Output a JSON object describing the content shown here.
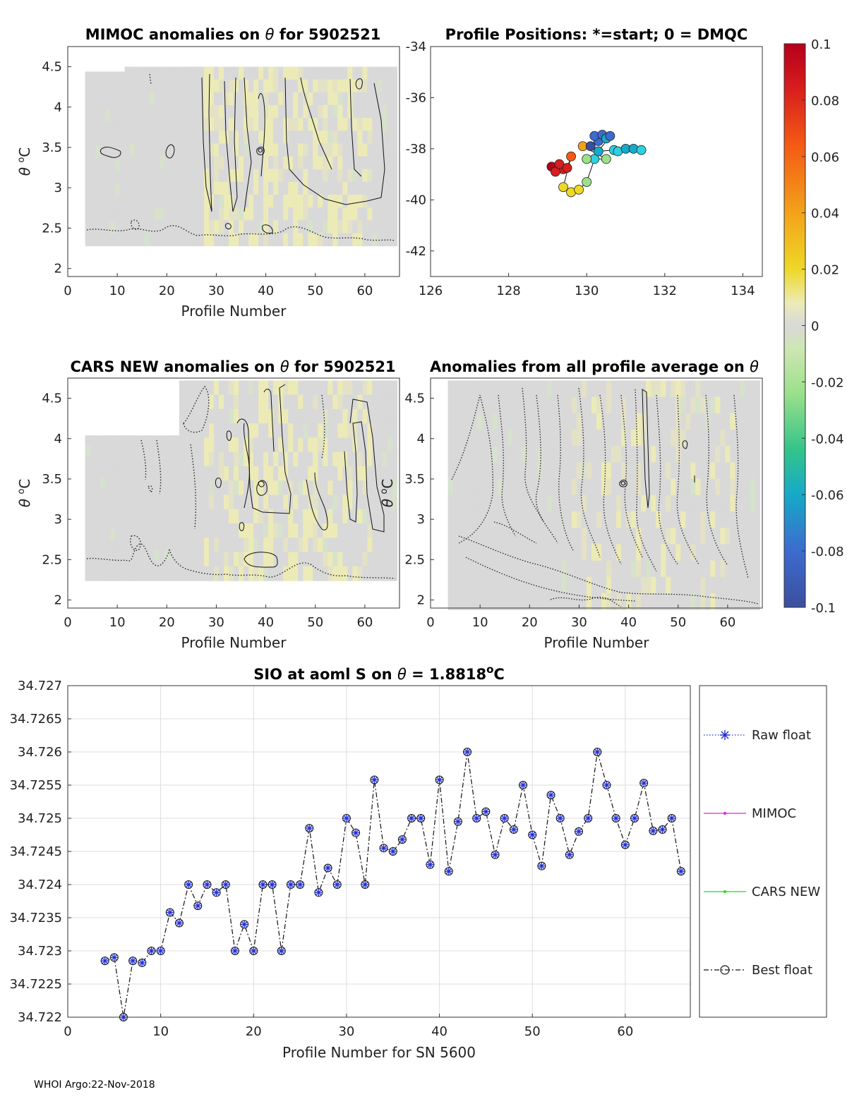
{
  "footer": "WHOI Argo:22-Nov-2018",
  "colors": {
    "raw": "#1f2bd6",
    "mimoc": "#e020e0",
    "cars": "#22dd22",
    "best": "#000000",
    "grid": "#dddddd",
    "field_gray": "#d9d9d9",
    "field_yellow": "#ecebb7"
  },
  "chart_data": [
    {
      "id": "mimoc",
      "type": "heatmap",
      "title_parts": [
        "MIMOC anomalies on ",
        "θ",
        "  for 5902521"
      ],
      "xlabel": "Profile Number",
      "ylabel_parts": [
        "θ",
        " ",
        "o",
        "C"
      ],
      "xlim": [
        0,
        67
      ],
      "ylim": [
        1.9,
        4.75
      ],
      "xticks": [
        0,
        10,
        20,
        30,
        40,
        50,
        60
      ],
      "yticks": [
        2,
        2.5,
        3,
        3.5,
        4,
        4.5
      ],
      "ytick_labels": [
        "2",
        "2.5",
        "3",
        "3.5",
        "4",
        "4.5"
      ],
      "field_x_range": [
        4,
        66
      ],
      "field_y_range": [
        2.28,
        4.5
      ]
    },
    {
      "id": "positions",
      "type": "scatter",
      "title": "Profile Positions: *=start; 0 = DMQC",
      "xlim": [
        126,
        134.5
      ],
      "ylim": [
        -43,
        -34
      ],
      "xticks": [
        126,
        128,
        130,
        132,
        134
      ],
      "yticks": [
        -34,
        -36,
        -38,
        -40,
        -42
      ],
      "points": [
        {
          "lon": 129.1,
          "lat": -38.7,
          "v": 0.1
        },
        {
          "lon": 129.3,
          "lat": -38.75,
          "v": 0.095
        },
        {
          "lon": 129.4,
          "lat": -38.8,
          "v": 0.09
        },
        {
          "lon": 129.2,
          "lat": -38.9,
          "v": 0.085
        },
        {
          "lon": 129.3,
          "lat": -38.6,
          "v": 0.08
        },
        {
          "lon": 129.5,
          "lat": -38.75,
          "v": 0.075
        },
        {
          "lon": 129.6,
          "lat": -38.3,
          "v": 0.06
        },
        {
          "lon": 129.4,
          "lat": -39.5,
          "v": 0.028
        },
        {
          "lon": 129.6,
          "lat": -39.7,
          "v": 0.026
        },
        {
          "lon": 129.8,
          "lat": -39.6,
          "v": 0.02
        },
        {
          "lon": 130.0,
          "lat": -39.3,
          "v": -0.03
        },
        {
          "lon": 130.2,
          "lat": -38.4,
          "v": -0.04
        },
        {
          "lon": 130.0,
          "lat": -38.4,
          "v": -0.03
        },
        {
          "lon": 130.5,
          "lat": -38.4,
          "v": -0.035
        },
        {
          "lon": 129.9,
          "lat": -37.9,
          "v": 0.045
        },
        {
          "lon": 130.1,
          "lat": -37.9,
          "v": -0.1
        },
        {
          "lon": 130.3,
          "lat": -37.7,
          "v": -0.07
        },
        {
          "lon": 130.2,
          "lat": -37.5,
          "v": -0.08
        },
        {
          "lon": 130.4,
          "lat": -37.45,
          "v": -0.075
        },
        {
          "lon": 130.5,
          "lat": -37.6,
          "v": -0.065
        },
        {
          "lon": 130.6,
          "lat": -37.5,
          "v": -0.07
        },
        {
          "lon": 130.3,
          "lat": -38.1,
          "v": -0.06
        },
        {
          "lon": 130.7,
          "lat": -38.05,
          "v": -0.05
        },
        {
          "lon": 130.8,
          "lat": -38.1,
          "v": -0.045
        },
        {
          "lon": 131.0,
          "lat": -38.0,
          "v": -0.06
        },
        {
          "lon": 131.2,
          "lat": -38.0,
          "v": -0.055
        },
        {
          "lon": 131.4,
          "lat": -38.05,
          "v": -0.05
        }
      ]
    },
    {
      "id": "colorbar",
      "type": "colorbar",
      "range": [
        -0.1,
        0.1
      ],
      "tick_labels": [
        "0.1",
        "0.08",
        "0.06",
        "0.04",
        "0.02",
        "0",
        "-0.02",
        "-0.04",
        "-0.06",
        "-0.08",
        "-0.1"
      ],
      "tick_values": [
        0.1,
        0.08,
        0.06,
        0.04,
        0.02,
        0,
        -0.02,
        -0.04,
        -0.06,
        -0.08,
        -0.1
      ]
    },
    {
      "id": "cars",
      "type": "heatmap",
      "title_parts": [
        "CARS NEW anomalies on ",
        "θ",
        " for 5902521"
      ],
      "xlabel": "Profile Number",
      "ylabel_parts": [
        "θ",
        " ",
        "o",
        "C"
      ],
      "xlim": [
        0,
        67
      ],
      "ylim": [
        1.9,
        4.75
      ],
      "xticks": [
        0,
        10,
        20,
        30,
        40,
        50,
        60
      ],
      "yticks": [
        2,
        2.5,
        3,
        3.5,
        4,
        4.5
      ],
      "ytick_labels": [
        "2",
        "2.5",
        "3",
        "3.5",
        "4",
        "4.5"
      ],
      "field_x_range": [
        4,
        66
      ],
      "field_y_range": [
        2.24,
        4.72
      ]
    },
    {
      "id": "allprof",
      "type": "heatmap",
      "title_parts": [
        "Anomalies from all profile average on ",
        "θ"
      ],
      "xlabel": "Profile Number",
      "ylabel_parts": [
        "θ",
        " ",
        "o",
        "C"
      ],
      "xlim": [
        0,
        67
      ],
      "ylim": [
        1.9,
        4.75
      ],
      "xticks": [
        0,
        10,
        20,
        30,
        40,
        50,
        60
      ],
      "yticks": [
        2,
        2.5,
        3,
        3.5,
        4,
        4.5
      ],
      "ytick_labels": [
        "2",
        "2.5",
        "3",
        "3.5",
        "4",
        "4.5"
      ],
      "field_x_range": [
        4,
        66
      ],
      "field_y_range": [
        1.88,
        4.72
      ]
    },
    {
      "id": "salinity",
      "type": "line",
      "title_parts": [
        "SIO at aoml S on ",
        "θ",
        " = 1.8818",
        "o",
        "C"
      ],
      "xlabel": "Profile Number for SN 5600",
      "xlim": [
        0,
        67
      ],
      "ylim": [
        34.722,
        34.727
      ],
      "xticks": [
        0,
        10,
        20,
        30,
        40,
        50,
        60
      ],
      "yticks": [
        34.722,
        34.7225,
        34.723,
        34.7235,
        34.724,
        34.7245,
        34.725,
        34.7255,
        34.726,
        34.7265,
        34.727
      ],
      "ytick_labels": [
        "34.722",
        "34.7225",
        "34.723",
        "34.7235",
        "34.724",
        "34.7245",
        "34.725",
        "34.7255",
        "34.726",
        "34.7265",
        "34.727"
      ],
      "legend": [
        "Raw float",
        "MIMOC",
        "CARS NEW",
        "Best float"
      ],
      "x": [
        4,
        5,
        6,
        7,
        8,
        9,
        10,
        11,
        12,
        13,
        14,
        15,
        16,
        17,
        18,
        19,
        20,
        21,
        22,
        23,
        24,
        25,
        26,
        27,
        28,
        29,
        30,
        31,
        32,
        33,
        34,
        35,
        36,
        37,
        38,
        39,
        40,
        41,
        42,
        43,
        44,
        45,
        46,
        47,
        48,
        49,
        50,
        51,
        52,
        53,
        54,
        55,
        56,
        57,
        58,
        59,
        60,
        61,
        62,
        63,
        64,
        65,
        66
      ],
      "series": [
        {
          "name": "Best float",
          "values": [
            34.72285,
            34.7229,
            34.722,
            34.72285,
            34.72282,
            34.723,
            34.723,
            34.72358,
            34.72342,
            34.724,
            34.72368,
            34.724,
            34.72388,
            34.724,
            34.723,
            34.7234,
            34.723,
            34.724,
            34.724,
            34.723,
            34.724,
            34.724,
            34.72485,
            34.72388,
            34.72425,
            34.724,
            34.725,
            34.72478,
            34.724,
            34.72558,
            34.72455,
            34.7245,
            34.72468,
            34.725,
            34.725,
            34.7243,
            34.72558,
            34.7242,
            34.72495,
            34.726,
            34.725,
            34.7251,
            34.72445,
            34.725,
            34.72483,
            34.7255,
            34.72475,
            34.72428,
            34.72535,
            34.725,
            34.72445,
            34.7248,
            34.725,
            34.726,
            34.7255,
            34.725,
            34.7246,
            34.725,
            34.72553,
            34.72481,
            34.72483,
            34.725,
            34.7242
          ]
        }
      ]
    }
  ]
}
